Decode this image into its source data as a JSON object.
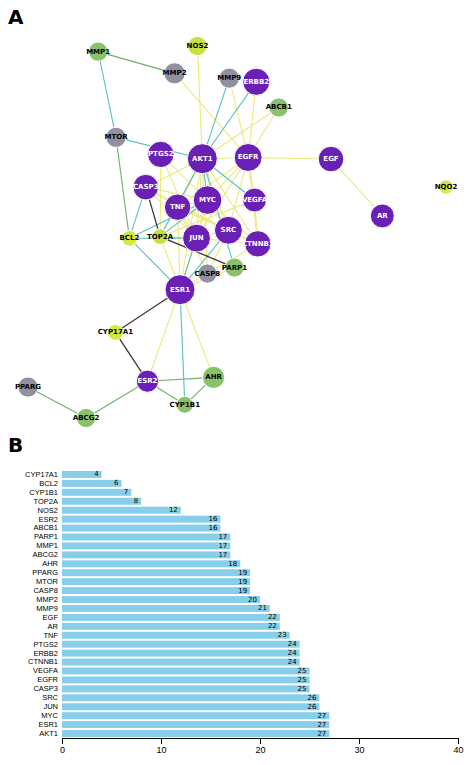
{
  "chart_data": [
    {
      "type": "network",
      "title": "A",
      "nodes": [
        {
          "name": "TOP2A",
          "color": "#c8e03c",
          "size": 600
        },
        {
          "name": "BCL2",
          "color": "#d4e842",
          "size": 600
        },
        {
          "name": "MYC",
          "color": "#6a1fb5",
          "size": 2000
        },
        {
          "name": "PARP1",
          "color": "#8ac26a",
          "size": 900
        },
        {
          "name": "CASP3",
          "color": "#6a1fb5",
          "size": 1600
        },
        {
          "name": "VEGFA",
          "color": "#6a1fb5",
          "size": 1400
        },
        {
          "name": "CYP1B1",
          "color": "#8ac26a",
          "size": 700
        },
        {
          "name": "PTGS2",
          "color": "#6a1fb5",
          "size": 1700
        },
        {
          "name": "JUN",
          "color": "#6a1fb5",
          "size": 1900
        },
        {
          "name": "MMP1",
          "color": "#8ac26a",
          "size": 900
        },
        {
          "name": "MMP9",
          "color": "#9090a0",
          "size": 1000
        },
        {
          "name": "CASP8",
          "color": "#9090a0",
          "size": 900
        },
        {
          "name": "TNF",
          "color": "#6a1fb5",
          "size": 1700
        },
        {
          "name": "SRC",
          "color": "#6a1fb5",
          "size": 1900
        },
        {
          "name": "MTOR",
          "color": "#9090a0",
          "size": 1000
        },
        {
          "name": "AKT1",
          "color": "#6a1fb5",
          "size": 2200
        },
        {
          "name": "ABCB1",
          "color": "#8ac26a",
          "size": 900
        },
        {
          "name": "NOS2",
          "color": "#c8e03c",
          "size": 900
        },
        {
          "name": "CTNNB1",
          "color": "#6a1fb5",
          "size": 1700
        },
        {
          "name": "ESR1",
          "color": "#6a1fb5",
          "size": 2200
        },
        {
          "name": "CYP17A1",
          "color": "#d4e842",
          "size": 600
        },
        {
          "name": "ERBB2",
          "color": "#6a1fb5",
          "size": 1800
        },
        {
          "name": "MMP2",
          "color": "#9090a0",
          "size": 1100
        },
        {
          "name": "EGFR",
          "color": "#6a1fb5",
          "size": 1900
        },
        {
          "name": "AHR",
          "color": "#8ac26a",
          "size": 1200
        },
        {
          "name": "ESR2",
          "color": "#6a1fb5",
          "size": 1200
        },
        {
          "name": "NQO2",
          "color": "#d4e842",
          "size": 500
        },
        {
          "name": "PPARG",
          "color": "#9090a0",
          "size": 1000
        },
        {
          "name": "ABCG2",
          "color": "#8ac26a",
          "size": 900
        },
        {
          "name": "EGF",
          "color": "#6a1fb5",
          "size": 1600
        },
        {
          "name": "AR",
          "color": "#6a1fb5",
          "size": 1400
        }
      ],
      "edges": [
        {
          "source": "TOP2A",
          "target": "MYC",
          "color": "#4ab8b8"
        },
        {
          "source": "TOP2A",
          "target": "PARP1",
          "color": "#222222"
        },
        {
          "source": "TOP2A",
          "target": "CASP3",
          "color": "#222222"
        },
        {
          "source": "TOP2A",
          "target": "JUN",
          "color": "#e8e870"
        },
        {
          "source": "TOP2A",
          "target": "VEGFA",
          "color": "#e8e870"
        },
        {
          "source": "TOP2A",
          "target": "PTGS2",
          "color": "#e8e870"
        },
        {
          "source": "TOP2A",
          "target": "AKT1",
          "color": "#4ab8b8"
        },
        {
          "source": "TOP2A",
          "target": "ESR1",
          "color": "#e8e870"
        },
        {
          "source": "BCL2",
          "target": "MYC",
          "color": "#4ab8b8"
        },
        {
          "source": "BCL2",
          "target": "CASP3",
          "color": "#4ab8b8"
        },
        {
          "source": "BCL2",
          "target": "JUN",
          "color": "#4ab8b8"
        },
        {
          "source": "BCL2",
          "target": "ESR1",
          "color": "#4ab8b8"
        },
        {
          "source": "BCL2",
          "target": "MTOR",
          "color": "#5aaa5a"
        },
        {
          "source": "MYC",
          "target": "CASP3",
          "color": "#e8e870"
        },
        {
          "source": "MYC",
          "target": "JUN",
          "color": "#e8e870"
        },
        {
          "source": "MYC",
          "target": "PTGS2",
          "color": "#e8e870"
        },
        {
          "source": "MYC",
          "target": "TNF",
          "color": "#e8e870"
        },
        {
          "source": "MYC",
          "target": "SRC",
          "color": "#e8e870"
        },
        {
          "source": "MYC",
          "target": "CTNNB1",
          "color": "#e8e870"
        },
        {
          "source": "MYC",
          "target": "EGFR",
          "color": "#e8e870"
        },
        {
          "source": "MYC",
          "target": "AKT1",
          "color": "#4ab8b8"
        },
        {
          "source": "MYC",
          "target": "ESR1",
          "color": "#e8e870"
        },
        {
          "source": "CASP3",
          "target": "JUN",
          "color": "#e8e870"
        },
        {
          "source": "CASP3",
          "target": "TNF",
          "color": "#e8e870"
        },
        {
          "source": "CASP3",
          "target": "SRC",
          "color": "#e8e870"
        },
        {
          "source": "CASP3",
          "target": "AKT1",
          "color": "#e8e870"
        },
        {
          "source": "JUN",
          "target": "PTGS2",
          "color": "#e8e870"
        },
        {
          "source": "JUN",
          "target": "TNF",
          "color": "#e8e870"
        },
        {
          "source": "JUN",
          "target": "SRC",
          "color": "#e8e870"
        },
        {
          "source": "JUN",
          "target": "CTNNB1",
          "color": "#e8e870"
        },
        {
          "source": "JUN",
          "target": "EGFR",
          "color": "#e8e870"
        },
        {
          "source": "JUN",
          "target": "AKT1",
          "color": "#e8e870"
        },
        {
          "source": "JUN",
          "target": "ESR1",
          "color": "#4ab8b8"
        },
        {
          "source": "VEGFA",
          "target": "AKT1",
          "color": "#4ab8b8"
        },
        {
          "source": "VEGFA",
          "target": "EGFR",
          "color": "#e8e870"
        },
        {
          "source": "VEGFA",
          "target": "CTNNB1",
          "color": "#e8e870"
        },
        {
          "source": "CYP1B1",
          "target": "ESR1",
          "color": "#4ab8b8"
        },
        {
          "source": "CYP1B1",
          "target": "ESR2",
          "color": "#5aaa5a"
        },
        {
          "source": "CYP1B1",
          "target": "AHR",
          "color": "#5aaa5a"
        },
        {
          "source": "PARP1",
          "target": "AKT1",
          "color": "#4ab8b8"
        },
        {
          "source": "PARP1",
          "target": "ESR1",
          "color": "#e8e870"
        },
        {
          "source": "MMP1",
          "target": "MMP2",
          "color": "#5aaa5a"
        },
        {
          "source": "MMP1",
          "target": "MTOR",
          "color": "#4ab8b8"
        },
        {
          "source": "MMP9",
          "target": "AKT1",
          "color": "#4ab8b8"
        },
        {
          "source": "MMP9",
          "target": "EGFR",
          "color": "#e8e870"
        },
        {
          "source": "CASP8",
          "target": "TNF",
          "color": "#e8e870"
        },
        {
          "source": "CASP8",
          "target": "AKT1",
          "color": "#e8e870"
        },
        {
          "source": "CASP8",
          "target": "SRC",
          "color": "#e8e870"
        },
        {
          "source": "TNF",
          "target": "SRC",
          "color": "#e8e870"
        },
        {
          "source": "TNF",
          "target": "AKT1",
          "color": "#e8e870"
        },
        {
          "source": "TNF",
          "target": "EGFR",
          "color": "#e8e870"
        },
        {
          "source": "TNF",
          "target": "CTNNB1",
          "color": "#e8e870"
        },
        {
          "source": "TNF",
          "target": "ESR1",
          "color": "#e8e870"
        },
        {
          "source": "SRC",
          "target": "AKT1",
          "color": "#e8e870"
        },
        {
          "source": "SRC",
          "target": "EGFR",
          "color": "#e8e870"
        },
        {
          "source": "SRC",
          "target": "CTNNB1",
          "color": "#e8e870"
        },
        {
          "source": "SRC",
          "target": "ESR1",
          "color": "#4ab8b8"
        },
        {
          "source": "MTOR",
          "target": "AKT1",
          "color": "#4ab8b8"
        },
        {
          "source": "AKT1",
          "target": "EGFR",
          "color": "#e8e870"
        },
        {
          "source": "AKT1",
          "target": "CTNNB1",
          "color": "#e8e870"
        },
        {
          "source": "AKT1",
          "target": "ESR1",
          "color": "#e8e870"
        },
        {
          "source": "AKT1",
          "target": "ERBB2",
          "color": "#4ab8b8"
        },
        {
          "source": "ABCB1",
          "target": "EGFR",
          "color": "#e8e870"
        },
        {
          "source": "ABCB1",
          "target": "AKT1",
          "color": "#e8e870"
        },
        {
          "source": "NOS2",
          "target": "AKT1",
          "color": "#e8e870"
        },
        {
          "source": "CTNNB1",
          "target": "ESR1",
          "color": "#e8e870"
        },
        {
          "source": "CTNNB1",
          "target": "EGFR",
          "color": "#e8e870"
        },
        {
          "source": "ESR1",
          "target": "CYP17A1",
          "color": "#222222"
        },
        {
          "source": "ESR1",
          "target": "ESR2",
          "color": "#e8e870"
        },
        {
          "source": "ESR1",
          "target": "AHR",
          "color": "#e8e870"
        },
        {
          "source": "CYP17A1",
          "target": "ESR2",
          "color": "#222222"
        },
        {
          "source": "ERBB2",
          "target": "EGFR",
          "color": "#e8e870"
        },
        {
          "source": "MMP2",
          "target": "EGFR",
          "color": "#e8e870"
        },
        {
          "source": "EGFR",
          "target": "EGF",
          "color": "#e8e870"
        },
        {
          "source": "AHR",
          "target": "ESR2",
          "color": "#5aaa5a"
        },
        {
          "source": "PPARG",
          "target": "ABCG2",
          "color": "#5aaa5a"
        },
        {
          "source": "EGF",
          "target": "AR",
          "color": "#e8e870"
        },
        {
          "source": "ABCG2",
          "target": "ESR2",
          "color": "#5aaa5a"
        }
      ]
    },
    {
      "type": "bar",
      "title": "B",
      "orientation": "horizontal",
      "categories": [
        "CYP17A1",
        "BCL2",
        "CYP1B1",
        "TOP2A",
        "NOS2",
        "ESR2",
        "ABCB1",
        "PARP1",
        "MMP1",
        "ABCG2",
        "AHR",
        "PPARG",
        "MTOR",
        "CASP8",
        "MMP2",
        "MMP9",
        "EGF",
        "AR",
        "TNF",
        "PTGS2",
        "ERBB2",
        "CTNNB1",
        "VEGFA",
        "EGFR",
        "CASP3",
        "SRC",
        "JUN",
        "MYC",
        "ESR1",
        "AKT1"
      ],
      "values": [
        4,
        6,
        7,
        8,
        12,
        16,
        16,
        17,
        17,
        17,
        18,
        19,
        19,
        19,
        20,
        21,
        22,
        22,
        23,
        24,
        24,
        24,
        25,
        25,
        25,
        26,
        26,
        27,
        27,
        27
      ],
      "color": "#87CEEB",
      "xlim": [
        0,
        40
      ],
      "xticks": [
        0,
        10,
        20,
        30,
        40
      ],
      "data_labels": true
    }
  ]
}
